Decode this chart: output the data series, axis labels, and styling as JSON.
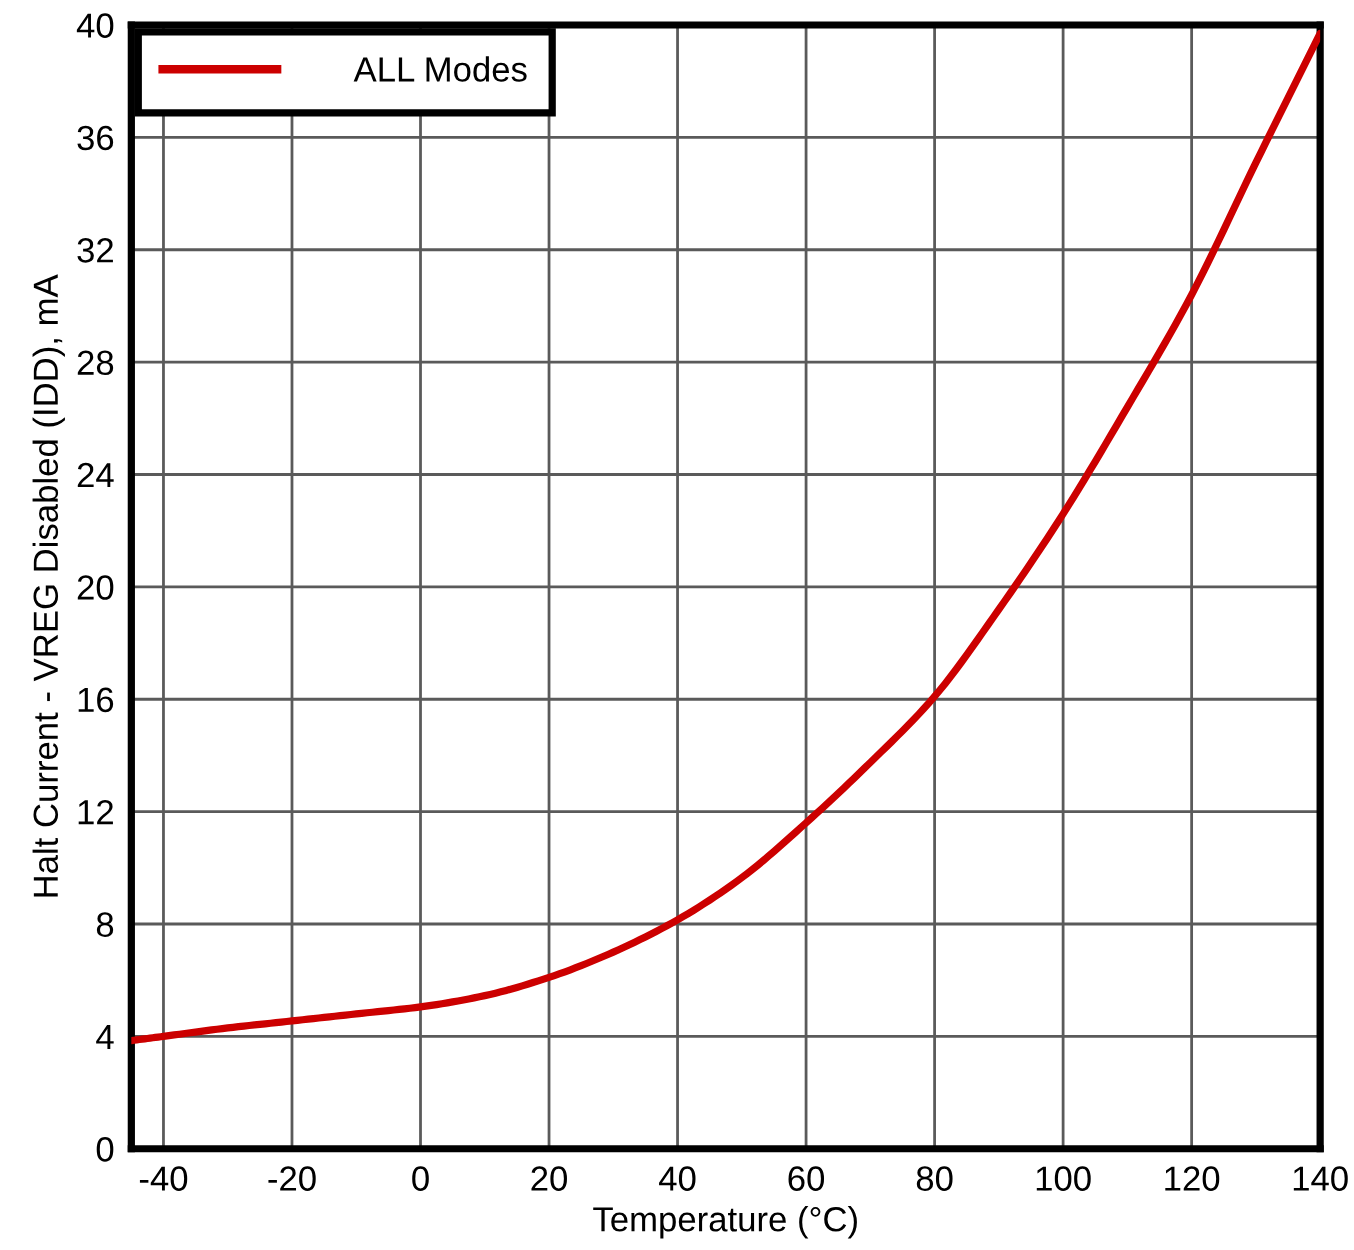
{
  "chart_data": {
    "type": "line",
    "xlabel": "Temperature (°C)",
    "ylabel": "Halt Current - VREG Disabled (IDD), mA",
    "x": [
      -45,
      -40,
      -30,
      -20,
      -10,
      0,
      10,
      20,
      30,
      40,
      50,
      60,
      70,
      80,
      90,
      100,
      110,
      120,
      130,
      140
    ],
    "series": [
      {
        "name": "ALL Modes",
        "color": "#cc0000",
        "values": [
          3.85,
          4.0,
          4.3,
          4.55,
          4.8,
          5.05,
          5.45,
          6.1,
          7.0,
          8.15,
          9.65,
          11.6,
          13.75,
          16.1,
          19.2,
          22.6,
          26.4,
          30.4,
          35.1,
          39.7
        ]
      }
    ],
    "xlim": [
      -45,
      140
    ],
    "xticks": [
      -40,
      -20,
      0,
      20,
      40,
      60,
      80,
      100,
      120,
      140
    ],
    "ylim": [
      0,
      40
    ],
    "yticks": [
      0,
      4,
      8,
      12,
      16,
      20,
      24,
      28,
      32,
      36,
      40
    ],
    "grid": true,
    "legend": "top left",
    "marker": "none",
    "line_style": "solid"
  }
}
